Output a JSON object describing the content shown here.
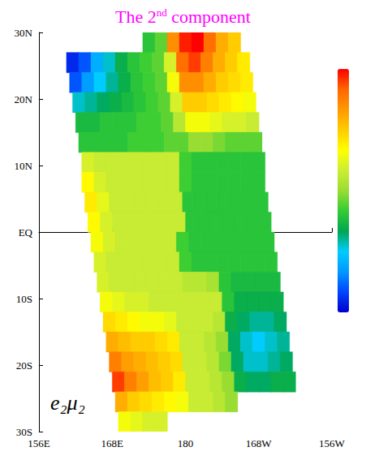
{
  "chart_data": {
    "type": "heatmap",
    "title": "The 2nd component",
    "annotation": "e₂μ₂",
    "xlim": [
      156,
      204
    ],
    "xticks": [
      {
        "value": 156,
        "label": "156E"
      },
      {
        "value": 168,
        "label": "168E"
      },
      180,
      {
        "value": 192,
        "label": "168W"
      },
      {
        "value": 204,
        "label": "156W"
      }
    ],
    "ylim": [
      -30,
      30
    ],
    "yticks": [
      {
        "value": -30,
        "label": "30S"
      },
      {
        "value": -20,
        "label": "20S"
      },
      {
        "value": -10,
        "label": "10S"
      },
      {
        "value": 0,
        "label": "EQ"
      },
      {
        "value": 10,
        "label": "10N"
      },
      {
        "value": 20,
        "label": "20N"
      },
      {
        "value": 30,
        "label": "30N"
      }
    ],
    "grid": false,
    "cells": {
      "lon_step": 2,
      "lat_step": 3,
      "rows": [
        {
          "lat": 28.5,
          "lon0": 173,
          "values": [
            -0.2,
            -0.1,
            0.7,
            0.95,
            1.0,
            0.8,
            0.6,
            0.5
          ]
        },
        {
          "lat": 25.5,
          "lon0": 160.5,
          "values": [
            -0.9,
            -0.8,
            -0.6,
            -0.45,
            -0.3,
            -0.2,
            -0.15,
            -0.1,
            0.2,
            0.8,
            0.9,
            0.75,
            0.6,
            0.5,
            0.4
          ]
        },
        {
          "lat": 22.5,
          "lon0": 161,
          "values": [
            -0.8,
            -0.65,
            -0.5,
            -0.4,
            -0.3,
            -0.2,
            -0.15,
            -0.1,
            0.3,
            0.7,
            0.7,
            0.6,
            0.5,
            0.45,
            0.4
          ]
        },
        {
          "lat": 19.5,
          "lon0": 161.5,
          "values": [
            -0.45,
            -0.4,
            -0.35,
            -0.3,
            -0.25,
            -0.2,
            -0.15,
            -0.1,
            0.2,
            0.5,
            0.5,
            0.45,
            0.4,
            0.35,
            0.3
          ]
        },
        {
          "lat": 16.5,
          "lon0": 162,
          "values": [
            -0.25,
            -0.25,
            -0.2,
            -0.2,
            -0.2,
            -0.15,
            -0.15,
            -0.1,
            0.1,
            0.3,
            0.3,
            0.25,
            0.2,
            0.2,
            0.15
          ]
        },
        {
          "lat": 13.5,
          "lon0": 162.5,
          "values": [
            -0.2,
            -0.2,
            -0.2,
            -0.2,
            -0.15,
            -0.15,
            -0.15,
            -0.1,
            -0.1,
            0.0,
            0.0,
            -0.05,
            -0.1,
            -0.1,
            -0.1
          ]
        },
        {
          "lat": 10.5,
          "lon0": 163,
          "values": [
            0.2,
            0.15,
            0.15,
            0.15,
            0.15,
            0.15,
            0.15,
            0.15,
            -0.15,
            -0.2,
            -0.2,
            -0.2,
            -0.2,
            -0.2,
            -0.2
          ]
        },
        {
          "lat": 7.5,
          "lon0": 163,
          "values": [
            0.35,
            0.2,
            0.15,
            0.15,
            0.15,
            0.15,
            0.15,
            0.15,
            -0.15,
            -0.2,
            -0.2,
            -0.2,
            -0.2,
            -0.2,
            -0.2
          ]
        },
        {
          "lat": 4.5,
          "lon0": 163.5,
          "values": [
            0.4,
            0.25,
            0.15,
            0.15,
            0.15,
            0.15,
            0.15,
            0.15,
            -0.2,
            -0.2,
            -0.2,
            -0.2,
            -0.2,
            -0.2,
            -0.2
          ]
        },
        {
          "lat": 1.5,
          "lon0": 164,
          "values": [
            0.35,
            0.2,
            0.15,
            0.15,
            0.15,
            0.15,
            0.15,
            0.15,
            -0.2,
            -0.2,
            -0.2,
            -0.2,
            -0.2,
            -0.2,
            -0.2
          ]
        },
        {
          "lat": -1.5,
          "lon0": 164.5,
          "values": [
            0.3,
            0.2,
            0.15,
            0.15,
            0.15,
            0.15,
            0.15,
            -0.15,
            -0.2,
            -0.2,
            -0.2,
            -0.2,
            -0.2,
            -0.2,
            -0.2
          ]
        },
        {
          "lat": -4.5,
          "lon0": 165,
          "values": [
            0.2,
            0.15,
            0.15,
            0.15,
            0.15,
            0.15,
            0.15,
            -0.15,
            -0.2,
            -0.2,
            -0.2,
            -0.2,
            -0.2,
            -0.2,
            -0.2
          ]
        },
        {
          "lat": -7.5,
          "lon0": 165.5,
          "values": [
            0.2,
            0.15,
            0.15,
            0.15,
            0.15,
            0.15,
            0.15,
            0.1,
            0.1,
            0.05,
            -0.2,
            -0.25,
            -0.25,
            -0.25,
            -0.25
          ]
        },
        {
          "lat": -10.5,
          "lon0": 166,
          "values": [
            0.3,
            0.25,
            0.2,
            0.2,
            0.15,
            0.15,
            0.15,
            0.15,
            0.15,
            0.15,
            -0.2,
            -0.3,
            -0.3,
            -0.3,
            -0.3
          ]
        },
        {
          "lat": -13.5,
          "lon0": 166.5,
          "values": [
            0.45,
            0.4,
            0.35,
            0.3,
            0.3,
            0.25,
            0.15,
            0.15,
            0.15,
            0.1,
            -0.3,
            -0.35,
            -0.4,
            -0.4,
            -0.35
          ]
        },
        {
          "lat": -16.5,
          "lon0": 167,
          "values": [
            0.6,
            0.55,
            0.5,
            0.5,
            0.45,
            0.4,
            0.15,
            0.15,
            0.1,
            0.0,
            -0.35,
            -0.45,
            -0.5,
            -0.45,
            -0.4
          ]
        },
        {
          "lat": -19.5,
          "lon0": 167.5,
          "values": [
            0.75,
            0.65,
            0.6,
            0.55,
            0.5,
            0.45,
            0.15,
            0.15,
            0.1,
            -0.05,
            -0.35,
            -0.45,
            -0.45,
            -0.4,
            -0.35
          ]
        },
        {
          "lat": -22.5,
          "lon0": 168,
          "values": [
            0.9,
            0.75,
            0.65,
            0.55,
            0.5,
            0.4,
            0.15,
            0.15,
            0.1,
            0.0,
            -0.3,
            -0.35,
            -0.35,
            -0.3,
            -0.3
          ]
        },
        {
          "lat": -25.5,
          "lon0": 168.5,
          "values": [
            0.6,
            0.5,
            0.45,
            0.4,
            0.35,
            0.3,
            0.15,
            0.15,
            0.1,
            0.0
          ]
        },
        {
          "lat": -28.5,
          "lon0": 169,
          "values": [
            0.3,
            0.25,
            0.2,
            0.2
          ]
        }
      ]
    },
    "colorbar": {
      "range": [
        -1,
        1
      ],
      "colors": [
        "#0000cc",
        "#0044ff",
        "#0099ff",
        "#00ccff",
        "#00a651",
        "#33cc33",
        "#99dd33",
        "#ccee33",
        "#ffff00",
        "#ffcc00",
        "#ff9900",
        "#ff6600",
        "#ff0000"
      ]
    }
  }
}
